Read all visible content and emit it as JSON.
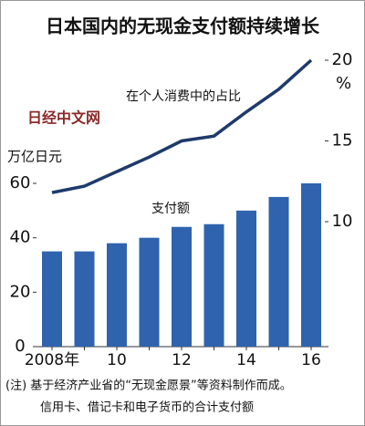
{
  "chart_data": {
    "type": "bar-line",
    "title": "日本国内的无现金支付额持续增长",
    "categories": [
      "2008年",
      null,
      "10",
      null,
      "12",
      null,
      "14",
      null,
      "16"
    ],
    "series": [
      {
        "name": "支付额",
        "type": "bar",
        "color": "#2f63ae",
        "values": [
          35,
          35,
          38,
          40,
          44,
          45,
          50,
          55,
          60
        ]
      },
      {
        "name": "在个人消费中的占比",
        "type": "line",
        "axis": "y2",
        "color": "#1f3a6b",
        "values": [
          11.8,
          12.2,
          13.1,
          14.0,
          15.0,
          15.3,
          16.8,
          18.2,
          20.0
        ]
      }
    ],
    "ylabel": "万亿日元",
    "y2label": "%",
    "ylim": [
      0,
      60
    ],
    "yticks": [
      0,
      20,
      40,
      60
    ],
    "y2lim": [
      10,
      20
    ],
    "y2ticks": [
      10,
      15,
      20
    ],
    "grid": false,
    "watermark": "日经中文网",
    "notes": [
      "(注) 基于经济产业省的“无现金愿景”等资料制作而成。",
      "信用卡、借记卡和电子货币的合计支付额"
    ]
  }
}
